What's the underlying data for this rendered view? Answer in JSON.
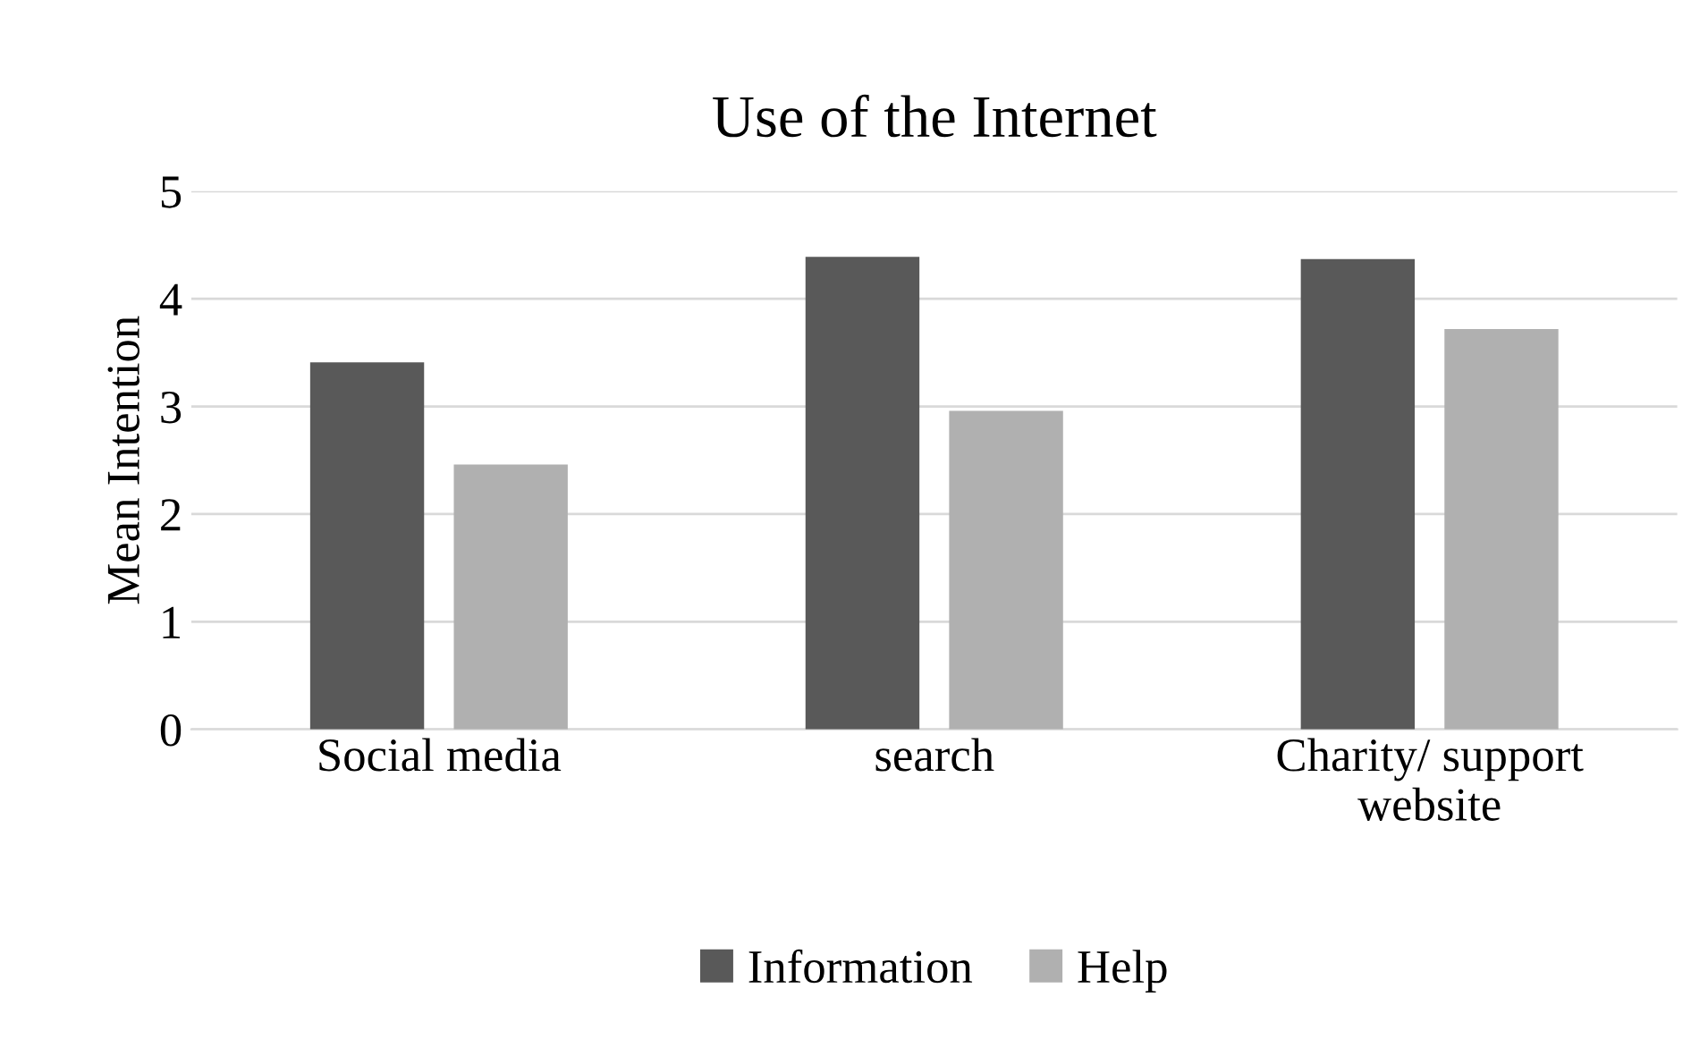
{
  "chart_data": {
    "type": "bar",
    "title": "Use of the Internet",
    "ylabel": "Mean Intention",
    "categories": [
      "Social media",
      "search",
      "Charity/ support\nwebsite"
    ],
    "series": [
      {
        "name": "Information",
        "color": "#595959",
        "values": [
          3.41,
          4.39,
          4.37
        ]
      },
      {
        "name": "Help",
        "color": "#b0b0b0",
        "values": [
          2.46,
          2.96,
          3.72
        ]
      }
    ],
    "ylim": [
      0,
      5
    ],
    "yticks": [
      0,
      1,
      2,
      3,
      4,
      5
    ],
    "grid": "y",
    "legend": "bottom"
  }
}
